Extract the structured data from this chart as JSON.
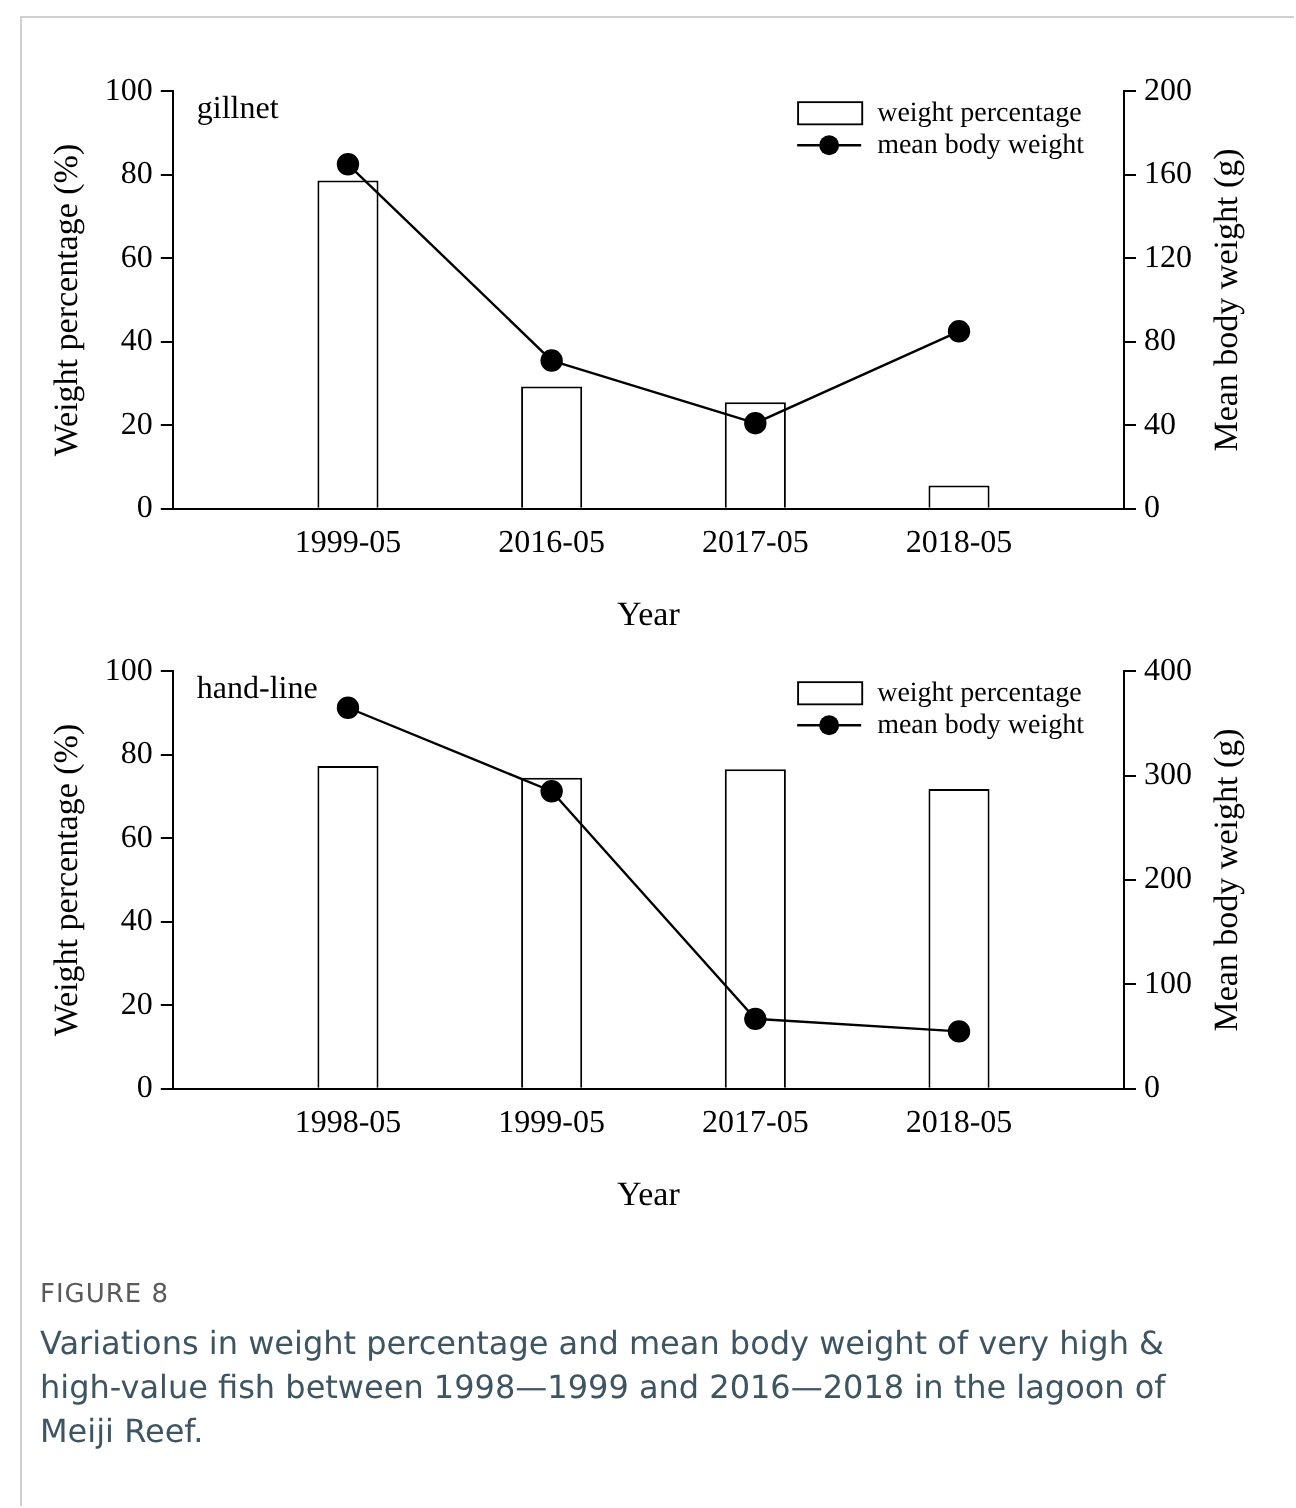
{
  "chart_data": [
    {
      "type": "bar",
      "title": "gillnet",
      "xlabel": "Year",
      "ylabel": "Weight percentage (%)",
      "y2label": "Mean body weight (g)",
      "categories": [
        "1999-05",
        "2016-05",
        "2017-05",
        "2018-05"
      ],
      "series": [
        {
          "name": "weight percentage",
          "color": "#ffffff",
          "values": [
            78.6,
            29.3,
            25.5,
            5.6
          ]
        },
        {
          "name": "mean body weight",
          "type": "line",
          "axis": "y2",
          "color": "#000000",
          "values": [
            165,
            71,
            41,
            85
          ]
        }
      ],
      "ylim": [
        0,
        100
      ],
      "yticks": [
        0,
        20,
        40,
        60,
        80,
        100
      ],
      "y2lim": [
        0,
        200
      ],
      "y2ticks": [
        0,
        40,
        80,
        120,
        160,
        200
      ],
      "grid": false,
      "legend": "top right",
      "marker": "circle"
    },
    {
      "type": "bar",
      "title": "hand-line",
      "xlabel": "Year",
      "ylabel": "Weight percentage (%)",
      "y2label": "Mean body weight (g)",
      "categories": [
        "1998-05",
        "1999-05",
        "2017-05",
        "2018-05"
      ],
      "series": [
        {
          "name": "weight percentage",
          "color": "#ffffff",
          "values": [
            77.3,
            74.5,
            76.5,
            71.8
          ]
        },
        {
          "name": "mean body weight",
          "type": "line",
          "axis": "y2",
          "color": "#000000",
          "values": [
            365,
            285,
            67,
            55
          ]
        }
      ],
      "ylim": [
        0,
        100
      ],
      "yticks": [
        0,
        20,
        40,
        60,
        80,
        100
      ],
      "y2lim": [
        0,
        400
      ],
      "y2ticks": [
        0,
        100,
        200,
        300,
        400
      ],
      "grid": false,
      "legend": "top right",
      "marker": "circle",
      "annotations": [
        "FIGURE 8",
        "Variations in weight percentage and mean body weight of very high & high-value fish between 1998—1999 and 2016—2018 in the lagoon of Meiji Reef."
      ]
    }
  ]
}
